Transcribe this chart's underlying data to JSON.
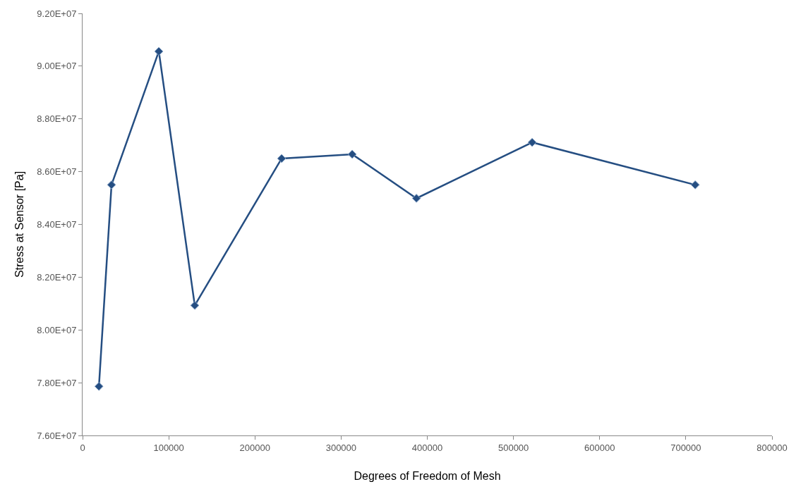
{
  "chart_data": {
    "type": "line",
    "xlabel": "Degrees of Freedom of Mesh",
    "ylabel": "Stress at Sensor [Pa]",
    "x": [
      19000,
      33600,
      88500,
      130200,
      231000,
      312900,
      387400,
      521700,
      710900
    ],
    "series": [
      {
        "color": "#254e82",
        "values": [
          77860000,
          85500000,
          90560000,
          80930000,
          86500000,
          86660000,
          84990000,
          87110000,
          85500000
        ]
      }
    ],
    "xlim": [
      0,
      800000
    ],
    "xticks": [
      0,
      100000,
      200000,
      300000,
      400000,
      500000,
      600000,
      700000,
      800000
    ],
    "ylim": [
      76000000,
      92000000
    ],
    "yticks": [
      {
        "value": 76000000,
        "label": "7.60E+07"
      },
      {
        "value": 78000000,
        "label": "7.80E+07"
      },
      {
        "value": 80000000,
        "label": "8.00E+07"
      },
      {
        "value": 82000000,
        "label": "8.20E+07"
      },
      {
        "value": 84000000,
        "label": "8.40E+07"
      },
      {
        "value": 86000000,
        "label": "8.60E+07"
      },
      {
        "value": 88000000,
        "label": "8.80E+07"
      },
      {
        "value": 90000000,
        "label": "9.00E+07"
      },
      {
        "value": 92000000,
        "label": "9.20E+07"
      }
    ],
    "marker": "diamond",
    "line_style": "solid"
  }
}
